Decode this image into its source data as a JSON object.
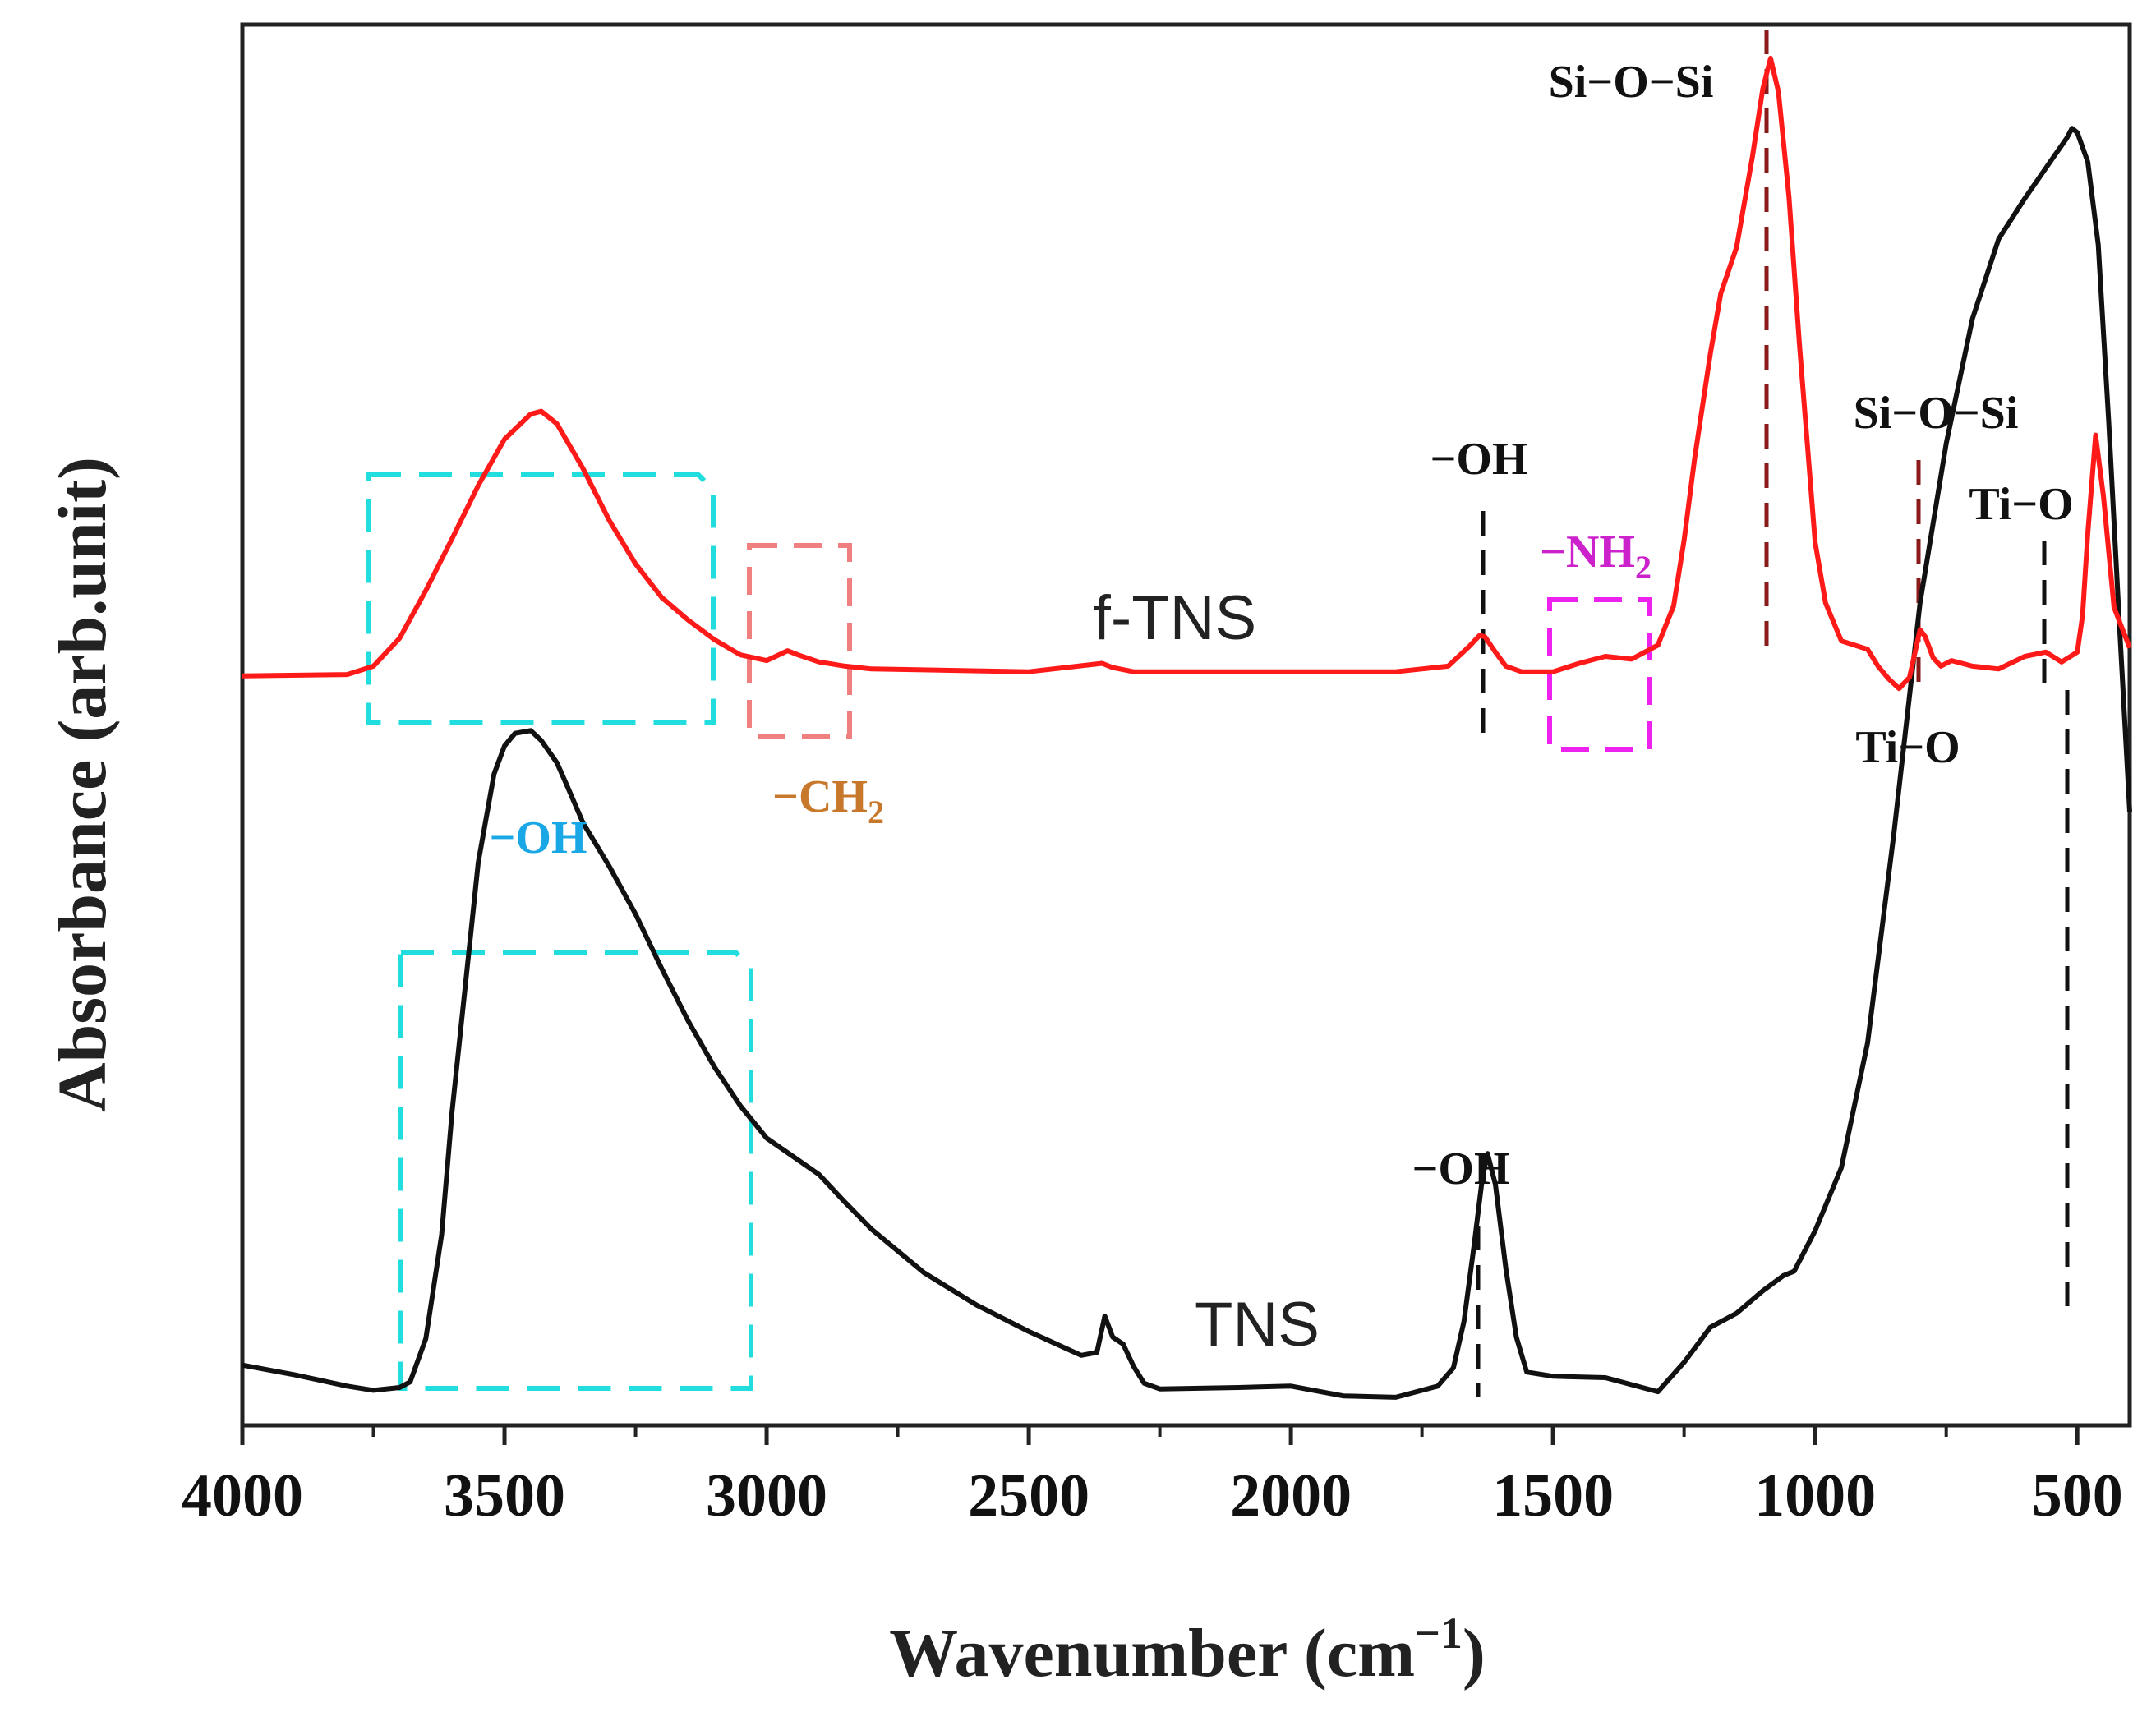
{
  "chart_data": {
    "type": "line",
    "title": "",
    "xlabel": "Wavenumber (cm",
    "xlabel_sup": "−1",
    "xlabel_close": ")",
    "ylabel": "Absorbance (arb.unit)",
    "xlim": [
      4000,
      400
    ],
    "ylim": [
      0,
      100
    ],
    "x_ticks": [
      4000,
      3500,
      3000,
      2500,
      2000,
      1500,
      1000,
      500
    ],
    "x_tick_labels": [
      "4000",
      "3500",
      "3000",
      "2500",
      "2000",
      "1500",
      "1000",
      "500"
    ],
    "grid": false,
    "series": [
      {
        "name": "f-TNS",
        "color": "#ff1a1a",
        "x": [
          4000,
          3800,
          3750,
          3700,
          3650,
          3600,
          3550,
          3500,
          3450,
          3430,
          3400,
          3350,
          3300,
          3250,
          3200,
          3150,
          3100,
          3050,
          3000,
          2960,
          2940,
          2900,
          2850,
          2800,
          2500,
          2360,
          2340,
          2300,
          2000,
          1800,
          1700,
          1660,
          1640,
          1630,
          1610,
          1590,
          1560,
          1500,
          1450,
          1400,
          1350,
          1300,
          1270,
          1250,
          1230,
          1200,
          1180,
          1150,
          1120,
          1100,
          1085,
          1070,
          1050,
          1030,
          1000,
          980,
          950,
          900,
          880,
          860,
          840,
          820,
          800,
          790,
          775,
          760,
          740,
          700,
          650,
          600,
          560,
          530,
          500,
          490,
          480,
          465,
          450,
          430,
          400
        ],
        "y": [
          53.5,
          53.6,
          54.2,
          56.2,
          59.6,
          63.3,
          67.1,
          70.4,
          72.2,
          72.4,
          71.5,
          68.3,
          64.6,
          61.5,
          59.1,
          57.5,
          56.1,
          55.0,
          54.6,
          55.3,
          55.0,
          54.5,
          54.2,
          54.0,
          53.8,
          54.4,
          54.1,
          53.8,
          53.8,
          53.8,
          54.2,
          55.6,
          56.4,
          56.3,
          55.2,
          54.2,
          53.8,
          53.8,
          54.4,
          54.9,
          54.7,
          55.7,
          58.5,
          63.2,
          69.0,
          76.5,
          80.8,
          84.1,
          90.5,
          95.4,
          97.6,
          95.2,
          87.7,
          77.2,
          63.0,
          58.7,
          56.0,
          55.4,
          54.2,
          53.3,
          52.6,
          53.4,
          56.8,
          56.3,
          54.8,
          54.2,
          54.6,
          54.2,
          54.0,
          54.9,
          55.2,
          54.5,
          55.2,
          57.8,
          63.7,
          70.7,
          66.3,
          58.4,
          55.5
        ]
      },
      {
        "name": "TNS",
        "color": "#111111",
        "x": [
          4000,
          3900,
          3800,
          3750,
          3700,
          3680,
          3650,
          3620,
          3600,
          3570,
          3550,
          3520,
          3500,
          3480,
          3450,
          3430,
          3400,
          3380,
          3350,
          3300,
          3250,
          3200,
          3150,
          3100,
          3050,
          3000,
          2950,
          2900,
          2850,
          2800,
          2700,
          2600,
          2500,
          2400,
          2370,
          2355,
          2340,
          2320,
          2300,
          2280,
          2250,
          2100,
          2000,
          1900,
          1800,
          1720,
          1690,
          1670,
          1650,
          1635,
          1625,
          1610,
          1590,
          1570,
          1550,
          1500,
          1400,
          1300,
          1250,
          1200,
          1150,
          1100,
          1060,
          1040,
          1000,
          950,
          900,
          850,
          800,
          750,
          700,
          650,
          600,
          550,
          520,
          510,
          500,
          480,
          460,
          440,
          420,
          400
        ],
        "y": [
          4.3,
          3.6,
          2.8,
          2.5,
          2.7,
          3.1,
          6.2,
          13.6,
          22.4,
          33.1,
          40.2,
          46.5,
          48.5,
          49.4,
          49.6,
          48.9,
          47.3,
          45.6,
          43.0,
          39.9,
          36.5,
          32.6,
          28.9,
          25.6,
          22.8,
          20.5,
          19.2,
          17.9,
          15.9,
          14.0,
          10.9,
          8.6,
          6.7,
          5.0,
          5.2,
          7.8,
          6.3,
          5.8,
          4.2,
          3.0,
          2.6,
          2.7,
          2.8,
          2.1,
          2.0,
          2.8,
          4.1,
          7.4,
          13.0,
          17.6,
          19.4,
          17.2,
          11.2,
          6.3,
          3.8,
          3.5,
          3.4,
          2.4,
          4.5,
          7.0,
          8.0,
          9.6,
          10.7,
          11.0,
          13.9,
          18.4,
          27.3,
          42.2,
          58.7,
          70.1,
          79.0,
          84.7,
          87.6,
          90.3,
          91.9,
          92.6,
          92.3,
          90.2,
          84.3,
          71.6,
          57.5,
          43.8
        ]
      }
    ],
    "annotations": {
      "ftns_label": "f-TNS",
      "tns_label": "TNS",
      "oh_cyan": "−OH",
      "ch2": "−CH",
      "ch2_sub": "2",
      "nh2": "−NH",
      "nh2_sub": "2",
      "oh_ftns": "−OH",
      "oh_tns": "−OH",
      "sioisi_top": "Si−O−Si",
      "sioisi_mid": "Si−O−Si",
      "tio_top": "Ti−O",
      "tio_bottom": "Ti−O"
    },
    "colors": {
      "cyan_box": "#22dddd",
      "ch2_box": "#f08080",
      "nh2_box": "#ee22ee",
      "ch2_text": "#c8782a",
      "nh2_text": "#cc22cc",
      "oh_cyan_text": "#1aa7e6",
      "marker_red": "#8b1a1a",
      "marker_black": "#111111"
    }
  }
}
